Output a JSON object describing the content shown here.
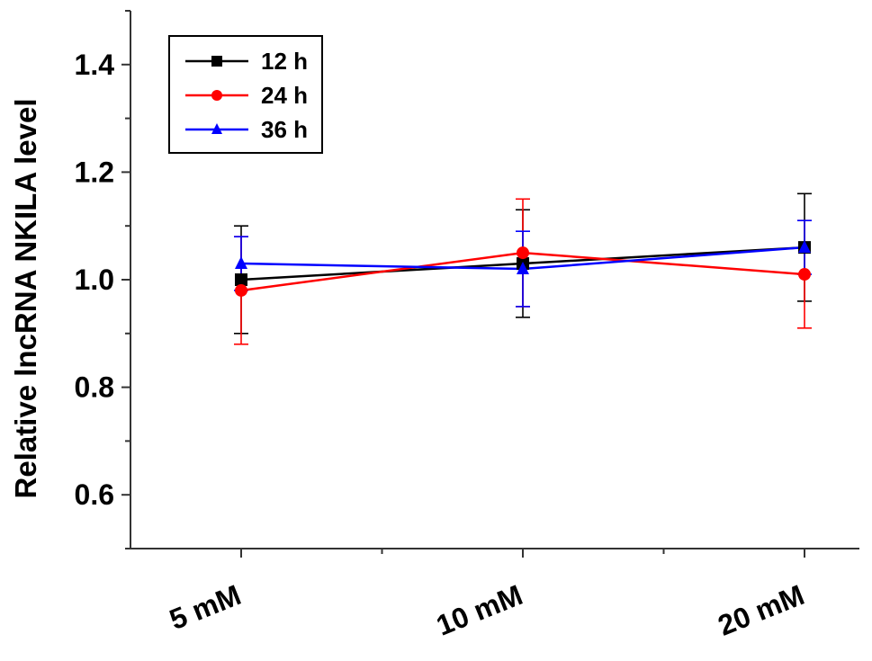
{
  "chart_data": {
    "type": "line",
    "title": "",
    "xlabel": "",
    "ylabel": "Relative lncRNA NKILA level",
    "categories": [
      "5 mM",
      "10 mM",
      "20 mM"
    ],
    "ylim": [
      0.5,
      1.5
    ],
    "yticks": [
      0.6,
      0.8,
      1.0,
      1.2,
      1.4
    ],
    "ytick_labels": [
      "0.6",
      "0.8",
      "1.0",
      "1.2",
      "1.4"
    ],
    "grid": false,
    "legend_position": "top-left",
    "series": [
      {
        "name": "12 h",
        "color": "#000000",
        "marker": "square",
        "values": [
          1.0,
          1.03,
          1.06
        ],
        "errors": [
          0.1,
          0.1,
          0.1
        ]
      },
      {
        "name": "24 h",
        "color": "#ff0000",
        "marker": "circle",
        "values": [
          0.98,
          1.05,
          1.01
        ],
        "errors": [
          0.1,
          0.1,
          0.1
        ]
      },
      {
        "name": "36 h",
        "color": "#0000ff",
        "marker": "triangle",
        "values": [
          1.03,
          1.02,
          1.06
        ],
        "errors": [
          0.05,
          0.07,
          0.05
        ]
      }
    ]
  }
}
